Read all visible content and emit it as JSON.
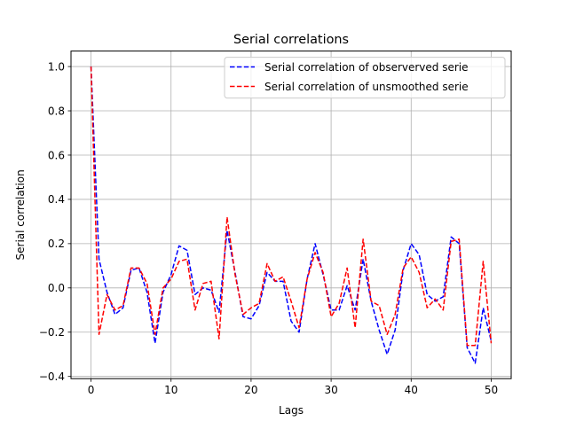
{
  "chart_data": {
    "type": "line",
    "title": "Serial correlations",
    "xlabel": "Lags",
    "ylabel": "Serial correlation",
    "xlim": [
      -2.5,
      52.5
    ],
    "ylim": [
      -0.41,
      1.07
    ],
    "grid": true,
    "legend_position": "upper right",
    "x_ticks": [
      0,
      10,
      20,
      30,
      40,
      50
    ],
    "x_tick_labels": [
      "0",
      "10",
      "20",
      "30",
      "40",
      "50"
    ],
    "y_ticks": [
      -0.4,
      -0.2,
      0.0,
      0.2,
      0.4,
      0.6,
      0.8,
      1.0
    ],
    "y_tick_labels": [
      "−0.4",
      "−0.2",
      "0.0",
      "0.2",
      "0.4",
      "0.6",
      "0.8",
      "1.0"
    ],
    "x": [
      0,
      1,
      2,
      3,
      4,
      5,
      6,
      7,
      8,
      9,
      10,
      11,
      12,
      13,
      14,
      15,
      16,
      17,
      18,
      19,
      20,
      21,
      22,
      23,
      24,
      25,
      26,
      27,
      28,
      29,
      30,
      31,
      32,
      33,
      34,
      35,
      36,
      37,
      38,
      39,
      40,
      41,
      42,
      43,
      44,
      45,
      46,
      47,
      48,
      49,
      50
    ],
    "series": [
      {
        "name": "Serial correlation of observerved serie",
        "color": "#0000ff",
        "style": "dashed",
        "values": [
          1.0,
          0.13,
          -0.02,
          -0.12,
          -0.09,
          0.08,
          0.09,
          -0.02,
          -0.25,
          -0.02,
          0.06,
          0.19,
          0.17,
          -0.03,
          0.0,
          -0.01,
          -0.11,
          0.26,
          0.07,
          -0.13,
          -0.14,
          -0.08,
          0.07,
          0.03,
          0.03,
          -0.15,
          -0.2,
          0.04,
          0.2,
          0.06,
          -0.1,
          -0.1,
          0.01,
          -0.1,
          0.13,
          -0.06,
          -0.19,
          -0.3,
          -0.19,
          0.08,
          0.2,
          0.15,
          -0.03,
          -0.06,
          -0.04,
          0.23,
          0.2,
          -0.27,
          -0.34,
          -0.09,
          -0.24
        ]
      },
      {
        "name": "Serial correlation of unsmoothed serie",
        "color": "#ff0000",
        "style": "dashed",
        "values": [
          1.0,
          -0.21,
          -0.03,
          -0.1,
          -0.08,
          0.09,
          0.09,
          0.02,
          -0.21,
          0.0,
          0.04,
          0.12,
          0.13,
          -0.1,
          0.02,
          0.03,
          -0.23,
          0.32,
          0.06,
          -0.12,
          -0.09,
          -0.07,
          0.11,
          0.03,
          0.05,
          -0.06,
          -0.18,
          0.04,
          0.16,
          0.07,
          -0.13,
          -0.07,
          0.09,
          -0.18,
          0.22,
          -0.06,
          -0.08,
          -0.21,
          -0.12,
          0.09,
          0.14,
          0.07,
          -0.09,
          -0.05,
          -0.1,
          0.21,
          0.22,
          -0.26,
          -0.26,
          0.12,
          -0.25
        ]
      }
    ]
  }
}
